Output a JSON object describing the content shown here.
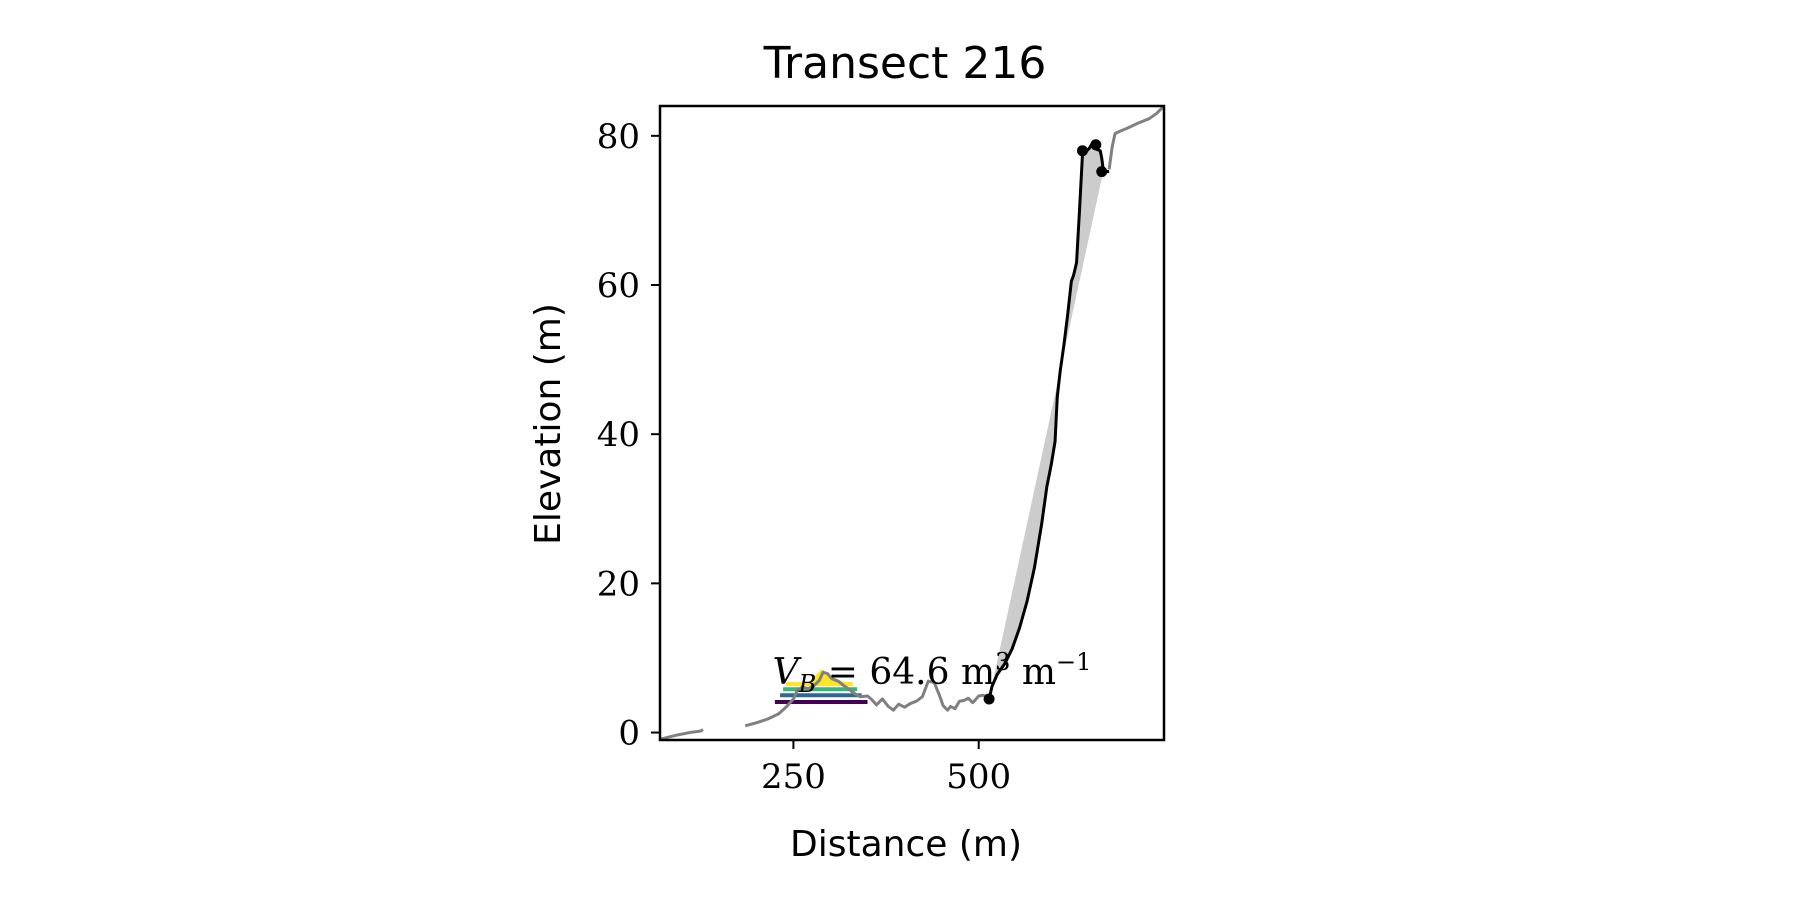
{
  "chart_data": {
    "type": "line",
    "title": "Transect 216",
    "xlabel": "Distance (m)",
    "ylabel": "Elevation (m)",
    "xlim": [
      70,
      750
    ],
    "ylim": [
      -1,
      84
    ],
    "xticks": [
      250,
      500
    ],
    "yticks": [
      0,
      20,
      40,
      60,
      80
    ],
    "grid": false,
    "colors": {
      "profile": "#808080",
      "cliff": "#000000",
      "fill": "#cccccc",
      "layers": [
        "#440154",
        "#31688e",
        "#35b779",
        "#fde725"
      ]
    },
    "annotation": {
      "symbol": "V",
      "subscript": "B",
      "text": "= 64.6 m",
      "sup1": "3",
      "unit2": "m",
      "sup2": "−1",
      "x": 222,
      "y": 6.5
    },
    "series": [
      {
        "role": "ground-profile-left",
        "x": [
          70,
          90,
          110,
          125,
          128
        ],
        "y": [
          -0.9,
          -0.4,
          0.0,
          0.2,
          0.4
        ]
      },
      {
        "role": "ground-profile",
        "x": [
          185,
          200,
          215,
          230,
          240,
          250,
          255,
          262,
          270,
          278,
          285,
          290,
          296,
          302,
          310,
          318,
          325,
          333,
          340,
          350,
          356,
          362,
          370,
          378,
          385,
          392,
          400,
          408,
          416,
          424,
          432,
          440,
          447,
          452,
          458,
          462,
          468,
          474,
          480,
          486,
          492,
          500,
          506,
          512
        ],
        "y": [
          0.9,
          1.3,
          1.8,
          2.5,
          3.4,
          4.5,
          5.6,
          6.1,
          5.9,
          6.3,
          7.0,
          8.1,
          7.9,
          7.2,
          6.9,
          6.3,
          5.8,
          5.2,
          4.8,
          4.9,
          4.4,
          3.7,
          4.5,
          3.5,
          3.0,
          3.8,
          3.4,
          3.9,
          4.2,
          4.8,
          6.9,
          6.7,
          5.0,
          3.6,
          3.0,
          3.5,
          3.2,
          4.2,
          4.3,
          4.6,
          4.0,
          4.9,
          5.0,
          4.8
        ]
      },
      {
        "role": "ground-profile-top",
        "x": [
          676,
          680,
          684,
          690,
          700,
          715,
          730,
          740,
          750
        ],
        "y": [
          75.5,
          78.5,
          80.3,
          80.6,
          81.0,
          81.7,
          82.3,
          83.0,
          84.0
        ]
      },
      {
        "role": "cliff-profile",
        "x": [
          514,
          518,
          525,
          535,
          545,
          555,
          565,
          575,
          585,
          592,
          598,
          603,
          606,
          610,
          615,
          620,
          625,
          628,
          632,
          636,
          640,
          643,
          646,
          649,
          652,
          656,
          664,
          666,
          668,
          672,
          676
        ],
        "y": [
          4.5,
          6.2,
          7.8,
          9.2,
          11.2,
          14.0,
          17.5,
          22.0,
          28.0,
          33.0,
          36.0,
          39.0,
          45.0,
          48.5,
          52.0,
          56.0,
          60.5,
          61.3,
          63.0,
          70.0,
          77.5,
          78.2,
          78.0,
          78.3,
          78.8,
          78.3,
          78.0,
          77.0,
          75.5,
          75.2,
          75.2
        ]
      }
    ],
    "points": [
      {
        "x": 514,
        "y": 4.5
      },
      {
        "x": 640,
        "y": 78.0
      },
      {
        "x": 658,
        "y": 78.8
      },
      {
        "x": 666,
        "y": 75.2
      }
    ],
    "shaded_region": {
      "x": [
        514,
        525,
        535,
        545,
        555,
        565,
        575,
        585,
        592,
        598,
        603,
        606,
        610,
        615,
        620,
        625,
        628,
        632,
        636,
        640,
        643,
        646,
        649,
        652,
        656,
        664,
        666,
        672,
        676,
        668,
        514
      ],
      "y": [
        4.5,
        7.8,
        9.2,
        11.2,
        14.0,
        17.5,
        22.0,
        28.0,
        33.0,
        36.0,
        39.0,
        45.0,
        48.5,
        52.0,
        56.0,
        60.5,
        61.3,
        63.0,
        70.0,
        77.5,
        78.2,
        78.0,
        78.3,
        78.8,
        78.3,
        78.0,
        77.0,
        75.2,
        75.2,
        75.2,
        4.5
      ]
    },
    "layers": [
      {
        "x": [
          225,
          350
        ],
        "y": 4.1,
        "color": "#440154"
      },
      {
        "x": [
          232,
          342
        ],
        "y": 5.0,
        "color": "#31688e"
      },
      {
        "x": [
          236,
          336
        ],
        "y": 5.8,
        "color": "#35b779"
      },
      {
        "x": [
          240,
          330
        ],
        "y": 6.5,
        "color": "#fde725"
      }
    ],
    "wedge": {
      "x": [
        268,
        288,
        300,
        318,
        332
      ],
      "y": [
        6.5,
        8.5,
        7.6,
        6.8,
        6.5
      ],
      "color": "#fde725"
    }
  }
}
